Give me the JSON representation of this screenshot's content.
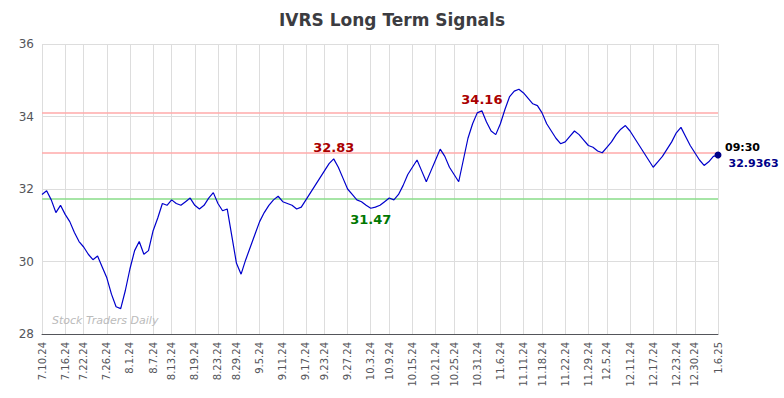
{
  "chart_data": {
    "type": "line",
    "title": "IVRS Long Term Signals",
    "color": "#0000cc",
    "grid": true,
    "ylim": [
      28,
      36
    ],
    "yticks": [
      28,
      30,
      32,
      34,
      36
    ],
    "categories": [
      "7.10.24",
      null,
      null,
      null,
      null,
      "7.16.24",
      null,
      null,
      null,
      "7.22.24",
      null,
      null,
      null,
      null,
      "7.26.24",
      null,
      null,
      null,
      null,
      "8.1.24",
      null,
      null,
      null,
      null,
      "8.7.24",
      null,
      null,
      null,
      "8.13.24",
      null,
      null,
      null,
      null,
      "8.19.24",
      null,
      null,
      null,
      null,
      "8.23.24",
      null,
      null,
      null,
      "8.29.24",
      null,
      null,
      null,
      null,
      "9.5.24",
      null,
      null,
      null,
      null,
      "9.11.24",
      null,
      null,
      null,
      null,
      "9.17.24",
      null,
      null,
      null,
      "9.23.24",
      null,
      null,
      null,
      null,
      "9.27.24",
      null,
      null,
      null,
      null,
      "10.3.24",
      null,
      null,
      null,
      "10.9.24",
      null,
      null,
      null,
      null,
      "10.15.24",
      null,
      null,
      null,
      null,
      "10.21.24",
      null,
      null,
      null,
      "10.25.24",
      null,
      null,
      null,
      null,
      "10.31.24",
      null,
      null,
      null,
      null,
      "11.6.24",
      null,
      null,
      null,
      null,
      "11.11.24",
      null,
      null,
      null,
      "11.18.24",
      null,
      null,
      null,
      null,
      "11.22.24",
      null,
      null,
      null,
      null,
      "11.29.24",
      null,
      null,
      null,
      "12.5.24",
      null,
      null,
      null,
      null,
      "12.11.24",
      null,
      null,
      null,
      null,
      "12.17.24",
      null,
      null,
      null,
      null,
      "12.23.24",
      null,
      null,
      null,
      "12.30.24",
      null,
      null,
      null,
      null,
      "1.6.25"
    ],
    "values": [
      31.85,
      31.95,
      31.7,
      31.35,
      31.55,
      31.3,
      31.1,
      30.8,
      30.55,
      30.4,
      30.2,
      30.05,
      30.15,
      29.85,
      29.55,
      29.1,
      28.75,
      28.7,
      29.2,
      29.8,
      30.3,
      30.55,
      30.2,
      30.3,
      30.85,
      31.2,
      31.6,
      31.55,
      31.7,
      31.6,
      31.55,
      31.65,
      31.75,
      31.55,
      31.45,
      31.55,
      31.75,
      31.9,
      31.6,
      31.4,
      31.45,
      30.7,
      29.95,
      29.65,
      30.05,
      30.4,
      30.75,
      31.1,
      31.35,
      31.55,
      31.7,
      31.8,
      31.65,
      31.6,
      31.55,
      31.45,
      31.5,
      31.7,
      31.9,
      32.1,
      32.3,
      32.5,
      32.7,
      32.83,
      32.6,
      32.3,
      32.0,
      31.85,
      31.7,
      31.65,
      31.55,
      31.47,
      31.5,
      31.55,
      31.65,
      31.75,
      31.7,
      31.85,
      32.1,
      32.4,
      32.6,
      32.8,
      32.5,
      32.2,
      32.5,
      32.8,
      33.1,
      32.9,
      32.6,
      32.4,
      32.2,
      32.8,
      33.4,
      33.8,
      34.1,
      34.16,
      33.85,
      33.6,
      33.5,
      33.8,
      34.2,
      34.55,
      34.7,
      34.75,
      34.65,
      34.5,
      34.35,
      34.3,
      34.1,
      33.8,
      33.6,
      33.4,
      33.25,
      33.3,
      33.45,
      33.6,
      33.5,
      33.35,
      33.2,
      33.15,
      33.05,
      33.0,
      33.15,
      33.3,
      33.5,
      33.65,
      33.75,
      33.6,
      33.4,
      33.2,
      33.0,
      32.8,
      32.6,
      32.75,
      32.9,
      33.1,
      33.3,
      33.55,
      33.7,
      33.45,
      33.2,
      33.0,
      32.8,
      32.65,
      32.75,
      32.9,
      32.9363
    ],
    "hlines": [
      {
        "value": 34.1,
        "color": "#ffaaaa"
      },
      {
        "value": 33.0,
        "color": "#ffaaaa"
      },
      {
        "value": 31.73,
        "color": "#88dd88"
      }
    ],
    "annotations": [
      {
        "text": "34.16",
        "index": 95,
        "value": 34.16,
        "color": "#aa0000",
        "position": "above"
      },
      {
        "text": "32.83",
        "index": 63,
        "value": 32.83,
        "color": "#aa0000",
        "position": "above"
      },
      {
        "text": "31.47",
        "index": 71,
        "value": 31.47,
        "color": "#007700",
        "position": "below"
      },
      {
        "text": "09:30",
        "index": 146,
        "value": 32.9363,
        "color": "#000000",
        "position": "upper right"
      },
      {
        "text": "32.9363",
        "index": 146,
        "value": 32.9363,
        "color": "#000088",
        "position": "lower right",
        "marker": "circle"
      }
    ],
    "watermark": {
      "text": "Stock Traders Daily",
      "color": "#bbbbbb"
    }
  }
}
